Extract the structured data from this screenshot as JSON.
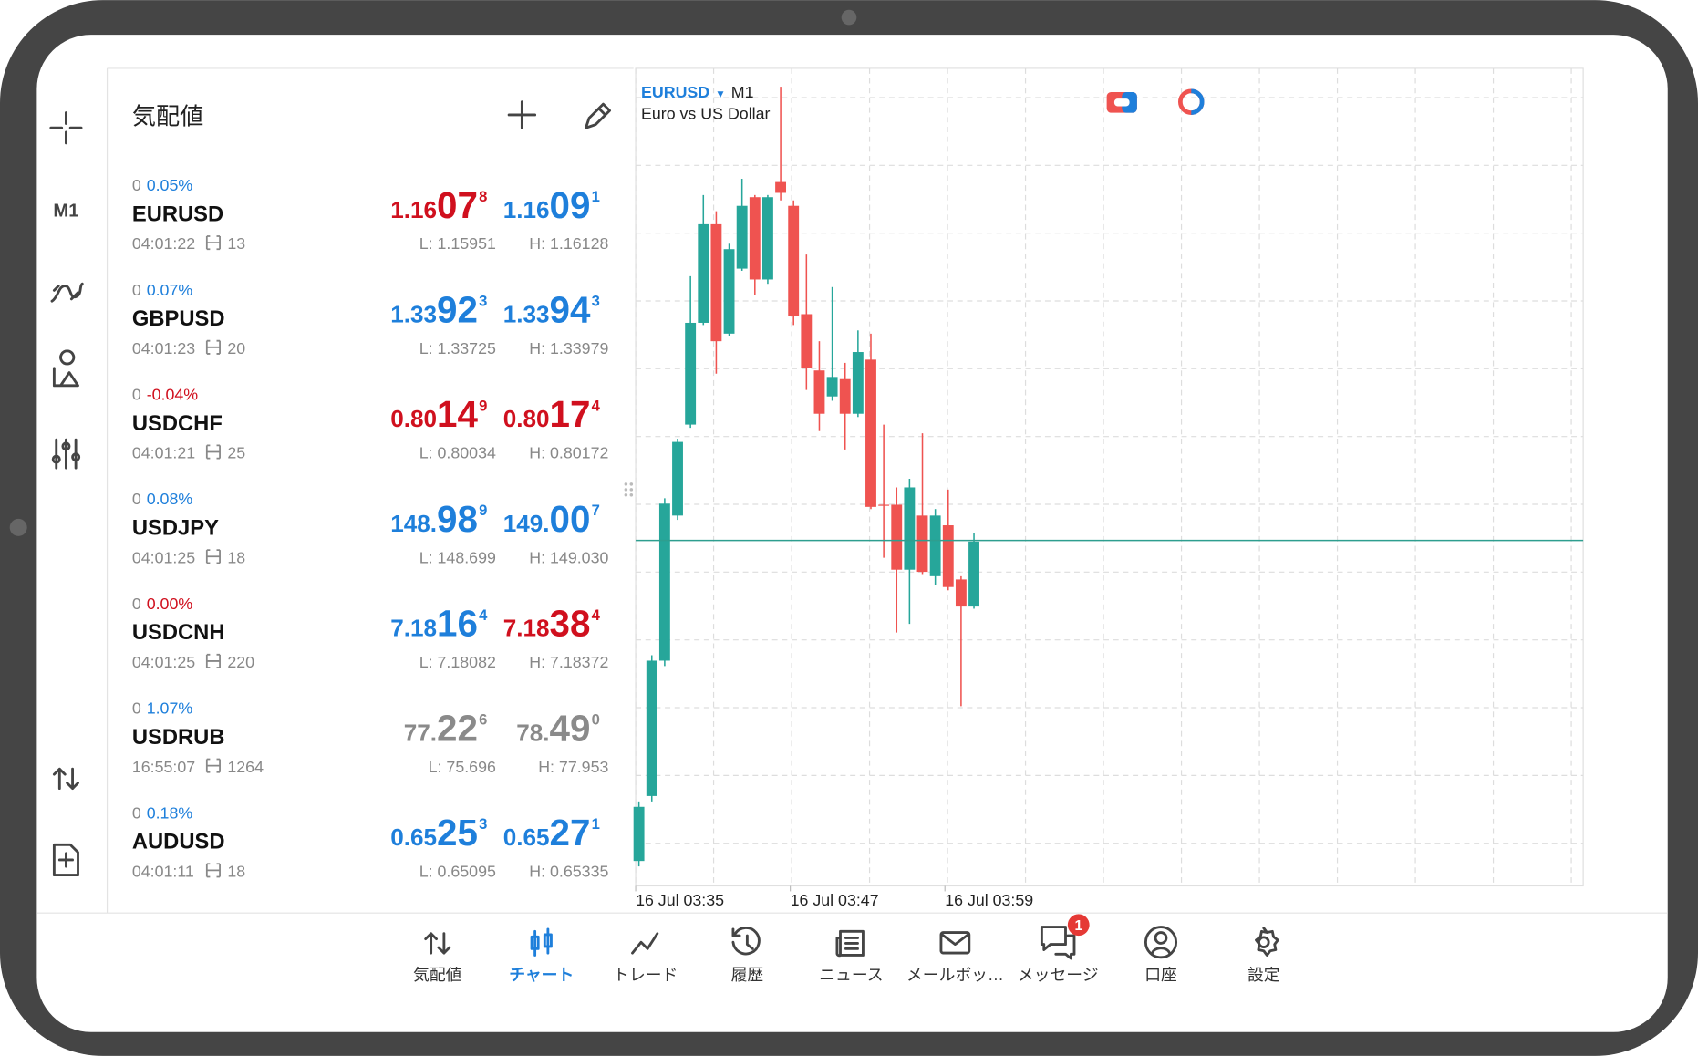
{
  "sidebar": {
    "timeframe": "M1"
  },
  "quotes": {
    "title": "気配値",
    "rows": [
      {
        "change": 0,
        "change_pct": "0.05%",
        "pct_color": "#1e7fdb",
        "symbol": "EURUSD",
        "time": "04:01:22",
        "spread": 13,
        "bid": {
          "prefix": "1.16",
          "big": "07",
          "pip": "8",
          "color": "#d0101e"
        },
        "ask": {
          "prefix": "1.16",
          "big": "09",
          "pip": "1",
          "color": "#1e7fdb"
        },
        "low": "L: 1.15951",
        "high": "H: 1.16128"
      },
      {
        "change": 0,
        "change_pct": "0.07%",
        "pct_color": "#1e7fdb",
        "symbol": "GBPUSD",
        "time": "04:01:23",
        "spread": 20,
        "bid": {
          "prefix": "1.33",
          "big": "92",
          "pip": "3",
          "color": "#1e7fdb"
        },
        "ask": {
          "prefix": "1.33",
          "big": "94",
          "pip": "3",
          "color": "#1e7fdb"
        },
        "low": "L: 1.33725",
        "high": "H: 1.33979"
      },
      {
        "change": 0,
        "change_pct": "-0.04%",
        "pct_color": "#d0101e",
        "symbol": "USDCHF",
        "time": "04:01:21",
        "spread": 25,
        "bid": {
          "prefix": "0.80",
          "big": "14",
          "pip": "9",
          "color": "#d0101e"
        },
        "ask": {
          "prefix": "0.80",
          "big": "17",
          "pip": "4",
          "color": "#d0101e"
        },
        "low": "L: 0.80034",
        "high": "H: 0.80172"
      },
      {
        "change": 0,
        "change_pct": "0.08%",
        "pct_color": "#1e7fdb",
        "symbol": "USDJPY",
        "time": "04:01:25",
        "spread": 18,
        "bid": {
          "prefix": "148.",
          "big": "98",
          "pip": "9",
          "color": "#1e7fdb"
        },
        "ask": {
          "prefix": "149.",
          "big": "00",
          "pip": "7",
          "color": "#1e7fdb"
        },
        "low": "L: 148.699",
        "high": "H: 149.030"
      },
      {
        "change": 0,
        "change_pct": "0.00%",
        "pct_color": "#d0101e",
        "symbol": "USDCNH",
        "time": "04:01:25",
        "spread": 220,
        "bid": {
          "prefix": "7.18",
          "big": "16",
          "pip": "4",
          "color": "#1e7fdb"
        },
        "ask": {
          "prefix": "7.18",
          "big": "38",
          "pip": "4",
          "color": "#d0101e"
        },
        "low": "L: 7.18082",
        "high": "H: 7.18372"
      },
      {
        "change": 0,
        "change_pct": "1.07%",
        "pct_color": "#1e7fdb",
        "symbol": "USDRUB",
        "time": "16:55:07",
        "spread": 1264,
        "bid": {
          "prefix": "77.",
          "big": "22",
          "pip": "6",
          "color": "#8a8a8a"
        },
        "ask": {
          "prefix": "78.",
          "big": "49",
          "pip": "0",
          "color": "#8a8a8a"
        },
        "low": "L: 75.696",
        "high": "H: 77.953"
      },
      {
        "change": 0,
        "change_pct": "0.18%",
        "pct_color": "#1e7fdb",
        "symbol": "AUDUSD",
        "time": "04:01:11",
        "spread": 18,
        "bid": {
          "prefix": "0.65",
          "big": "25",
          "pip": "3",
          "color": "#1e7fdb"
        },
        "ask": {
          "prefix": "0.65",
          "big": "27",
          "pip": "1",
          "color": "#1e7fdb"
        },
        "low": "L: 0.65095",
        "high": "H: 0.65335"
      }
    ]
  },
  "chart": {
    "type": "candlestick",
    "symbol": "EURUSD",
    "timeframe": "M1",
    "description": "Euro vs US Dollar",
    "categories": [
      "16 Jul 03:35",
      null,
      null,
      null,
      null,
      null,
      null,
      null,
      null,
      null,
      null,
      null,
      "16 Jul 03:47",
      null,
      null,
      null,
      null,
      null,
      null,
      null,
      null,
      null,
      null,
      null,
      "16 Jul 03:59",
      null,
      null
    ],
    "open": [
      1.160484,
      1.160544,
      1.160669,
      1.160803,
      1.160887,
      1.160981,
      1.161072,
      1.160971,
      1.161031,
      1.161097,
      1.161021,
      1.161111,
      1.161089,
      1.160989,
      1.160937,
      1.160913,
      1.160929,
      1.160897,
      1.160947,
      1.160813,
      1.160813,
      1.160753,
      1.160803,
      1.160747,
      1.160794,
      1.160744,
      1.160719
    ],
    "high": [
      1.160539,
      1.160674,
      1.160819,
      1.160874,
      1.161024,
      1.161099,
      1.161084,
      1.161054,
      1.161114,
      1.161099,
      1.161099,
      1.161199,
      1.161094,
      1.161044,
      1.160964,
      1.161014,
      1.160944,
      1.160974,
      1.160971,
      1.160887,
      1.160829,
      1.160837,
      1.160879,
      1.160809,
      1.160827,
      1.160747,
      1.160787
    ],
    "low": [
      1.160479,
      1.160539,
      1.160664,
      1.160799,
      1.160884,
      1.160979,
      1.160934,
      1.160969,
      1.161029,
      1.161007,
      1.161017,
      1.161094,
      1.160979,
      1.160919,
      1.160881,
      1.160909,
      1.160864,
      1.160894,
      1.160809,
      1.160764,
      1.160695,
      1.160703,
      1.160749,
      1.160739,
      1.160734,
      1.160627,
      1.160717
    ],
    "close": [
      1.160534,
      1.160669,
      1.160814,
      1.160871,
      1.160981,
      1.161072,
      1.160964,
      1.161049,
      1.161089,
      1.161021,
      1.161097,
      1.161101,
      1.160987,
      1.160939,
      1.160897,
      1.160931,
      1.160897,
      1.160954,
      1.160811,
      1.160812,
      1.160753,
      1.160829,
      1.160751,
      1.160803,
      1.160737,
      1.160719,
      1.160779
    ],
    "ylim": [
      1.160461,
      1.161216
    ],
    "price_line": 1.16078,
    "up_color": "#26a69a",
    "down_color": "#ef5350",
    "price_line_color": "#2e9e8f",
    "grid": true
  },
  "nav": {
    "items": [
      "気配値",
      "チャート",
      "トレード",
      "履歴",
      "ニュース",
      "メールボッ…",
      "メッセージ",
      "口座",
      "設定"
    ],
    "active": 1,
    "active_color": "#1e7fdb",
    "badge": 1
  }
}
